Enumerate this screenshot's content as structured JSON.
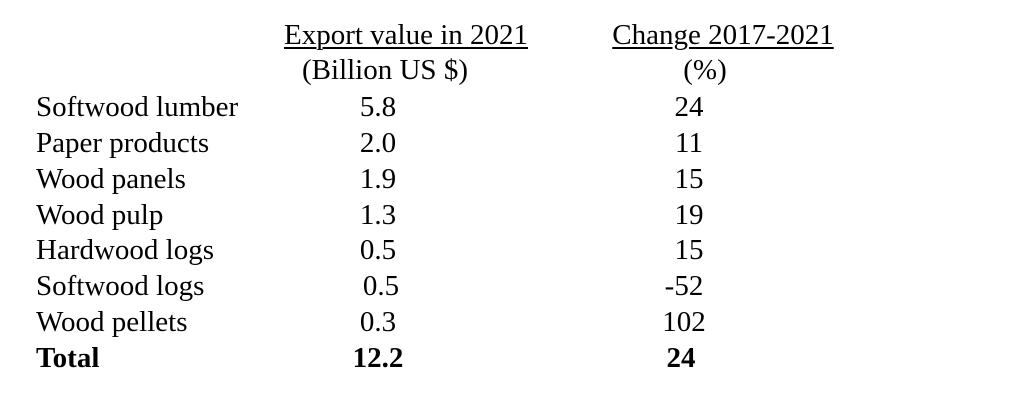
{
  "header": {
    "col1_line1": "Export value in 2021",
    "col1_line2": "(Billion US $)",
    "col2_line1": "Change 2017-2021",
    "col2_line2": "(%)"
  },
  "rows": [
    {
      "label": "Softwood lumber",
      "value": "5.8",
      "change": "24"
    },
    {
      "label": "Paper products",
      "value": "2.0",
      "change": "11"
    },
    {
      "label": "Wood panels",
      "value": "1.9",
      "change": "15"
    },
    {
      "label": "Wood pulp",
      "value": "1.3",
      "change": "19"
    },
    {
      "label": "Hardwood logs",
      "value": "0.5",
      "change": "15"
    },
    {
      "label": "Softwood logs",
      "value": "0.5",
      "change": "-52"
    },
    {
      "label": "Wood pellets",
      "value": "0.3",
      "change": "102"
    }
  ],
  "total": {
    "label": "Total",
    "value": "12.2",
    "change": "24"
  }
}
